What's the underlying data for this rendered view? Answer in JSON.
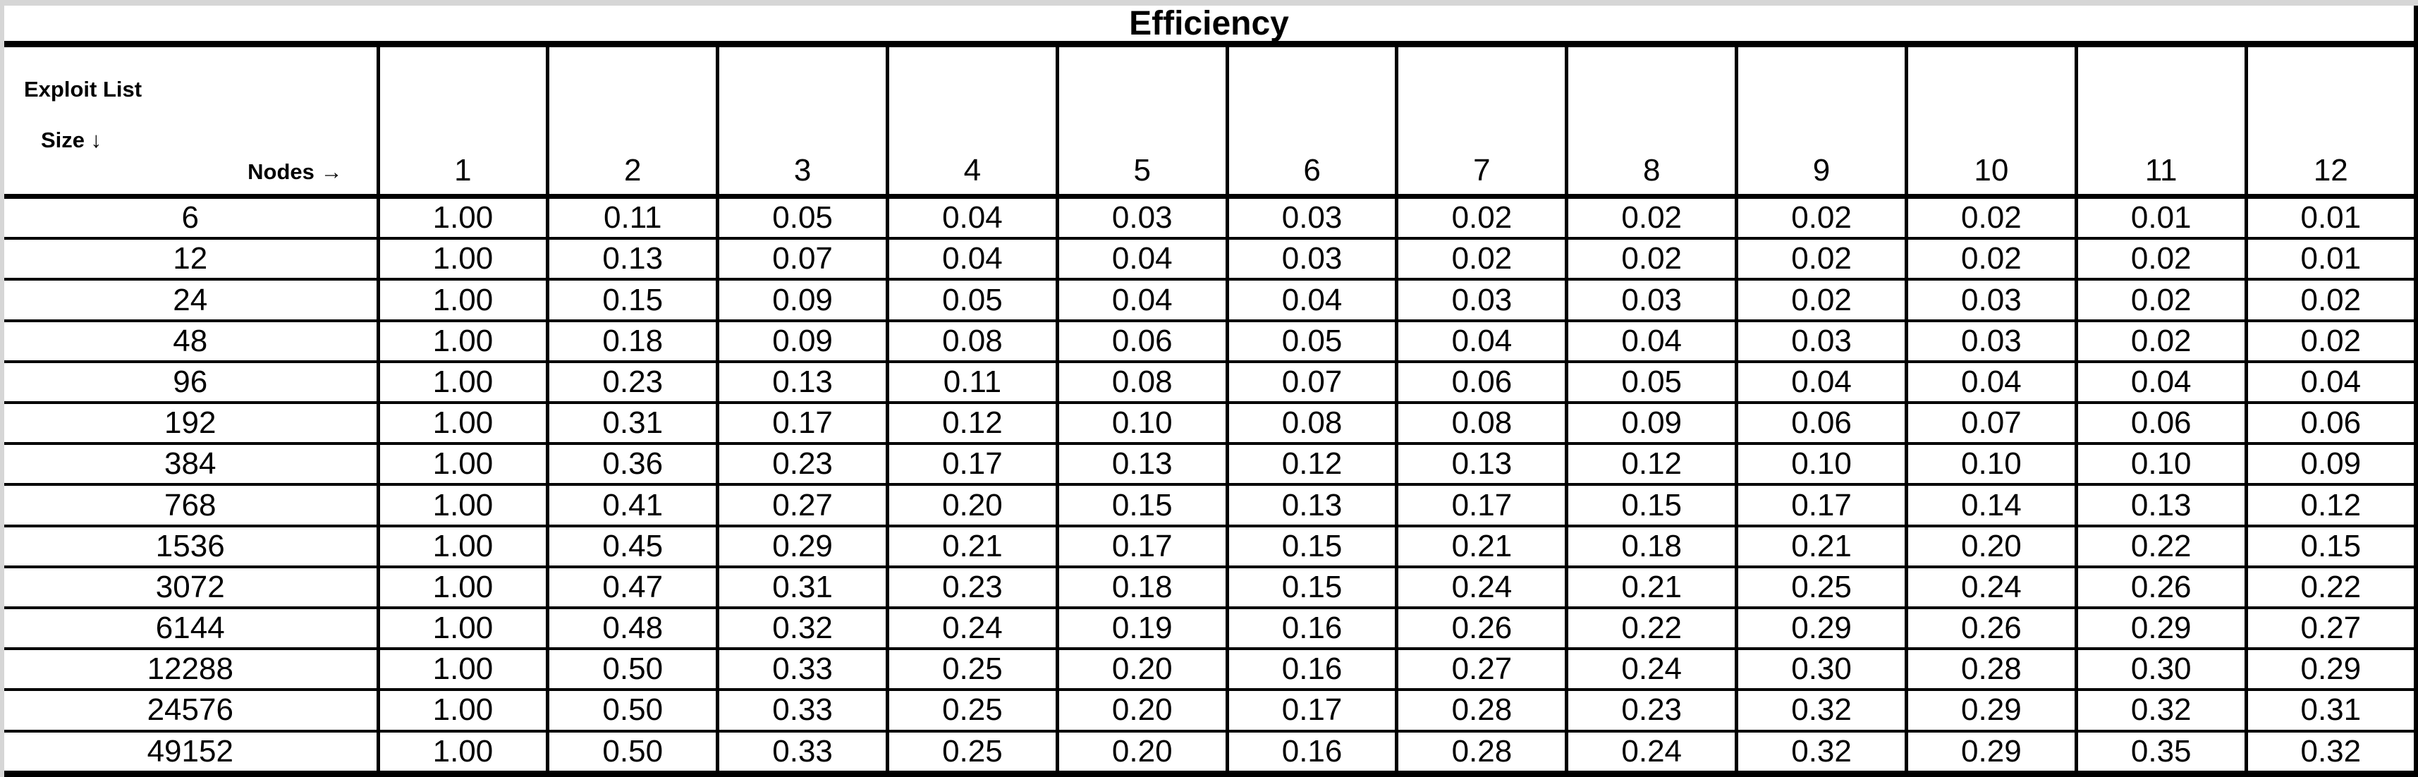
{
  "chart_data": {
    "type": "table",
    "title": "Efficiency",
    "corner": {
      "row_axis_line1": "Exploit List",
      "row_axis_line2": "Size ↓",
      "col_axis": "Nodes →"
    },
    "columns": [
      "1",
      "2",
      "3",
      "4",
      "5",
      "6",
      "7",
      "8",
      "9",
      "10",
      "11",
      "12"
    ],
    "rows": [
      {
        "label": "6",
        "values": [
          "1.00",
          "0.11",
          "0.05",
          "0.04",
          "0.03",
          "0.03",
          "0.02",
          "0.02",
          "0.02",
          "0.02",
          "0.01",
          "0.01"
        ]
      },
      {
        "label": "12",
        "values": [
          "1.00",
          "0.13",
          "0.07",
          "0.04",
          "0.04",
          "0.03",
          "0.02",
          "0.02",
          "0.02",
          "0.02",
          "0.02",
          "0.01"
        ]
      },
      {
        "label": "24",
        "values": [
          "1.00",
          "0.15",
          "0.09",
          "0.05",
          "0.04",
          "0.04",
          "0.03",
          "0.03",
          "0.02",
          "0.03",
          "0.02",
          "0.02"
        ]
      },
      {
        "label": "48",
        "values": [
          "1.00",
          "0.18",
          "0.09",
          "0.08",
          "0.06",
          "0.05",
          "0.04",
          "0.04",
          "0.03",
          "0.03",
          "0.02",
          "0.02"
        ]
      },
      {
        "label": "96",
        "values": [
          "1.00",
          "0.23",
          "0.13",
          "0.11",
          "0.08",
          "0.07",
          "0.06",
          "0.05",
          "0.04",
          "0.04",
          "0.04",
          "0.04"
        ]
      },
      {
        "label": "192",
        "values": [
          "1.00",
          "0.31",
          "0.17",
          "0.12",
          "0.10",
          "0.08",
          "0.08",
          "0.09",
          "0.06",
          "0.07",
          "0.06",
          "0.06"
        ]
      },
      {
        "label": "384",
        "values": [
          "1.00",
          "0.36",
          "0.23",
          "0.17",
          "0.13",
          "0.12",
          "0.13",
          "0.12",
          "0.10",
          "0.10",
          "0.10",
          "0.09"
        ]
      },
      {
        "label": "768",
        "values": [
          "1.00",
          "0.41",
          "0.27",
          "0.20",
          "0.15",
          "0.13",
          "0.17",
          "0.15",
          "0.17",
          "0.14",
          "0.13",
          "0.12"
        ]
      },
      {
        "label": "1536",
        "values": [
          "1.00",
          "0.45",
          "0.29",
          "0.21",
          "0.17",
          "0.15",
          "0.21",
          "0.18",
          "0.21",
          "0.20",
          "0.22",
          "0.15"
        ]
      },
      {
        "label": "3072",
        "values": [
          "1.00",
          "0.47",
          "0.31",
          "0.23",
          "0.18",
          "0.15",
          "0.24",
          "0.21",
          "0.25",
          "0.24",
          "0.26",
          "0.22"
        ]
      },
      {
        "label": "6144",
        "values": [
          "1.00",
          "0.48",
          "0.32",
          "0.24",
          "0.19",
          "0.16",
          "0.26",
          "0.22",
          "0.29",
          "0.26",
          "0.29",
          "0.27"
        ]
      },
      {
        "label": "12288",
        "values": [
          "1.00",
          "0.50",
          "0.33",
          "0.25",
          "0.20",
          "0.16",
          "0.27",
          "0.24",
          "0.30",
          "0.28",
          "0.30",
          "0.29"
        ]
      },
      {
        "label": "24576",
        "values": [
          "1.00",
          "0.50",
          "0.33",
          "0.25",
          "0.20",
          "0.17",
          "0.28",
          "0.23",
          "0.32",
          "0.29",
          "0.32",
          "0.31"
        ]
      },
      {
        "label": "49152",
        "values": [
          "1.00",
          "0.50",
          "0.33",
          "0.25",
          "0.20",
          "0.16",
          "0.28",
          "0.24",
          "0.32",
          "0.29",
          "0.35",
          "0.32"
        ]
      }
    ],
    "layout": {
      "header_column_label_position": "diagonal split cell, rows = exploit list size, columns = nodes",
      "grid": "on"
    },
    "colors": {
      "border": "#000000",
      "cell_bg": "#ffffff",
      "text": "#000000",
      "page_bg": "#d6d6d6"
    }
  }
}
